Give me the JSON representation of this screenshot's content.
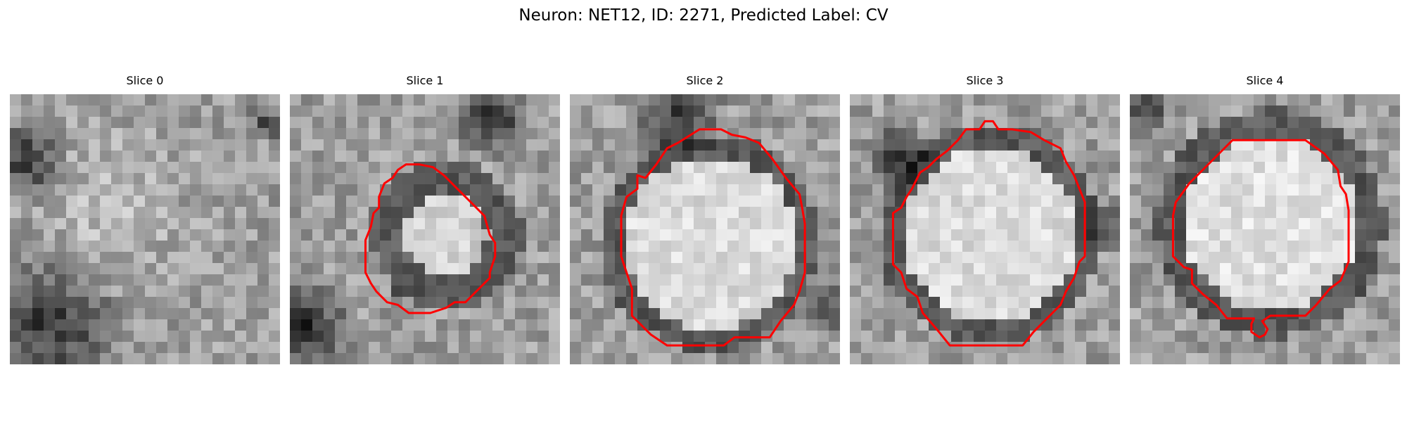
{
  "figure": {
    "title": "Neuron: NET12, ID: 2271, Predicted Label: CV",
    "contour_color": "#ff0000"
  },
  "panels": [
    {
      "title": "Slice 0",
      "has_contour": false
    },
    {
      "title": "Slice 1",
      "has_contour": true
    },
    {
      "title": "Slice 2",
      "has_contour": true
    },
    {
      "title": "Slice 3",
      "has_contour": true
    },
    {
      "title": "Slice 4",
      "has_contour": true
    }
  ]
}
